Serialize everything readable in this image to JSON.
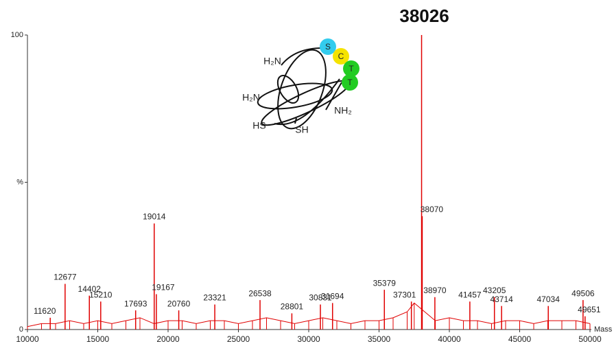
{
  "chart_data": {
    "type": "spectrum",
    "color": "#e00000",
    "x": [
      11620,
      12677,
      14402,
      15210,
      17693,
      19014,
      19167,
      20760,
      23321,
      26538,
      28801,
      30831,
      31694,
      35379,
      37301,
      38026,
      38070,
      38970,
      41457,
      43205,
      43714,
      47034,
      49506,
      49651
    ],
    "values": [
      4,
      15.5,
      11.5,
      9.5,
      6.5,
      36,
      12,
      6.5,
      8.5,
      10,
      5.5,
      8.5,
      9,
      13.5,
      9.5,
      100,
      38.5,
      11,
      9.5,
      11,
      8,
      8,
      10,
      4.5
    ],
    "baseline": {
      "x": [
        10000,
        11000,
        12000,
        13000,
        14000,
        15000,
        16000,
        17000,
        18000,
        19000,
        20000,
        21000,
        22000,
        23000,
        24000,
        25000,
        26000,
        27000,
        28000,
        29000,
        30000,
        31000,
        32000,
        33000,
        34000,
        35000,
        36000,
        37000,
        37500,
        39000,
        40000,
        41000,
        42000,
        43000,
        44000,
        45000,
        46000,
        47000,
        48000,
        49000,
        50000
      ],
      "values": [
        1,
        2,
        2,
        3,
        2,
        3,
        2,
        3,
        4,
        2,
        3,
        3,
        2,
        3,
        3,
        2,
        3,
        4,
        3,
        2,
        3,
        4,
        3,
        2,
        3,
        3,
        4,
        6,
        9,
        3,
        4,
        3,
        3,
        2,
        3,
        3,
        2,
        3,
        3,
        3,
        2
      ]
    },
    "xlim": [
      10000,
      50000
    ],
    "xticks": [
      10000,
      15000,
      20000,
      25000,
      30000,
      35000,
      40000,
      45000,
      50000
    ],
    "ylim": [
      0,
      100
    ],
    "yticks": [
      0,
      {
        "value": 50,
        "label": "%"
      },
      100
    ],
    "x_label": "Mass"
  },
  "annotation": {
    "amines": [
      "H₂N",
      "H₂N",
      "NH₂"
    ],
    "thiols": [
      "HS",
      "SH"
    ],
    "residues": [
      "S",
      "C",
      "T",
      "T"
    ]
  }
}
